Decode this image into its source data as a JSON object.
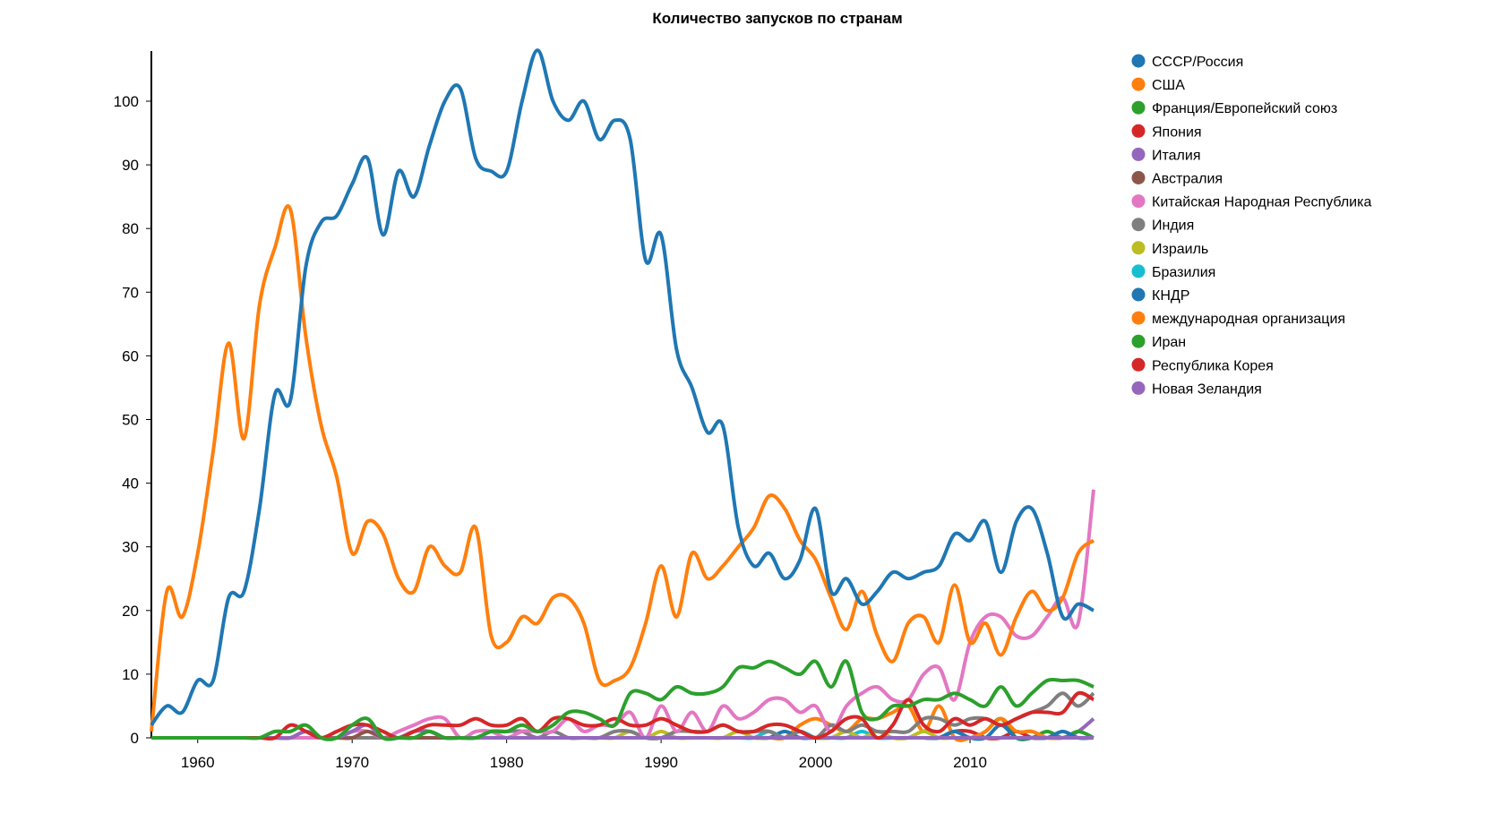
{
  "chart_data": {
    "type": "line",
    "title": "Количество запусков по странам",
    "xlabel": "",
    "ylabel": "",
    "x_range": [
      1957,
      2018
    ],
    "ylim": [
      0,
      108
    ],
    "x_ticks": [
      1960,
      1970,
      1980,
      1990,
      2000,
      2010
    ],
    "y_ticks": [
      0,
      10,
      20,
      30,
      40,
      50,
      60,
      70,
      80,
      90,
      100
    ],
    "legend_position": "right",
    "start_year": 1957,
    "series": [
      {
        "name": "СССР/Россия",
        "color": "#1f77b4",
        "values": [
          2,
          5,
          4,
          9,
          9,
          22,
          23,
          36,
          54,
          53,
          74,
          81,
          82,
          87,
          91,
          79,
          89,
          85,
          93,
          100,
          102,
          91,
          89,
          89,
          100,
          108,
          100,
          97,
          100,
          94,
          97,
          94,
          75,
          79,
          61,
          55,
          48,
          49,
          33,
          27,
          29,
          25,
          28,
          36,
          23,
          25,
          21,
          23,
          26,
          25,
          26,
          27,
          32,
          31,
          34,
          26,
          34,
          36,
          29,
          19,
          21,
          20
        ]
      },
      {
        "name": "США",
        "color": "#ff7f0e",
        "values": [
          1,
          23,
          19,
          29,
          45,
          62,
          47,
          68,
          77,
          83,
          63,
          49,
          41,
          29,
          34,
          32,
          25,
          23,
          30,
          27,
          26,
          33,
          16,
          15,
          19,
          18,
          22,
          22,
          18,
          9,
          9,
          11,
          18,
          27,
          19,
          29,
          25,
          27,
          30,
          33,
          38,
          36,
          31,
          28,
          22,
          17,
          23,
          16,
          12,
          18,
          19,
          15,
          24,
          15,
          18,
          13,
          19,
          23,
          20,
          22,
          29,
          31
        ]
      },
      {
        "name": "Франция/Европейский союз",
        "color": "#2ca02c",
        "sparse": {
          "1965": 1,
          "1966": 1,
          "1967": 2,
          "1970": 2,
          "1971": 3,
          "1975": 1,
          "1979": 1,
          "1980": 1,
          "1981": 2,
          "1982": 1,
          "1983": 2,
          "1984": 4,
          "1985": 4,
          "1986": 3,
          "1987": 2,
          "1988": 7,
          "1989": 7,
          "1990": 6,
          "1991": 8,
          "1992": 7,
          "1993": 7,
          "1994": 8,
          "1995": 11,
          "1996": 11,
          "1997": 12,
          "1998": 11,
          "1999": 10,
          "2000": 12,
          "2001": 8,
          "2002": 12,
          "2003": 4,
          "2004": 3,
          "2005": 5,
          "2006": 5,
          "2007": 6,
          "2008": 6,
          "2009": 7,
          "2010": 6,
          "2011": 5,
          "2012": 8,
          "2013": 5,
          "2014": 7,
          "2015": 9,
          "2016": 9,
          "2017": 9,
          "2018": 8
        }
      },
      {
        "name": "Япония",
        "color": "#d62728",
        "sparse": {
          "1966": 2,
          "1967": 1,
          "1969": 1,
          "1970": 2,
          "1971": 2,
          "1972": 1,
          "1974": 1,
          "1975": 2,
          "1976": 2,
          "1977": 2,
          "1978": 3,
          "1979": 2,
          "1980": 2,
          "1981": 3,
          "1982": 1,
          "1983": 3,
          "1984": 3,
          "1985": 2,
          "1986": 2,
          "1987": 3,
          "1988": 2,
          "1989": 2,
          "1990": 3,
          "1991": 2,
          "1992": 1,
          "1993": 1,
          "1994": 2,
          "1995": 1,
          "1996": 1,
          "1997": 2,
          "1998": 2,
          "1999": 1,
          "2001": 1,
          "2002": 3,
          "2003": 3,
          "2005": 2,
          "2006": 6,
          "2007": 2,
          "2008": 1,
          "2009": 3,
          "2010": 2,
          "2011": 3,
          "2012": 2,
          "2013": 3,
          "2014": 4,
          "2015": 4,
          "2016": 4,
          "2017": 7,
          "2018": 6
        }
      },
      {
        "name": "Италия",
        "color": "#9467bd",
        "sparse": {
          "1967": 1,
          "1970": 1,
          "1971": 2,
          "1974": 1,
          "1975": 1
        }
      },
      {
        "name": "Австралия",
        "color": "#8c564b",
        "sparse": {
          "1967": 1,
          "1971": 1
        }
      },
      {
        "name": "Китайская Народная Республика",
        "color": "#e377c2",
        "sparse": {
          "1970": 1,
          "1971": 1,
          "1973": 1,
          "1974": 2,
          "1975": 3,
          "1976": 3,
          "1978": 1,
          "1979": 1,
          "1981": 1,
          "1982": 1,
          "1983": 1,
          "1984": 3,
          "1985": 1,
          "1986": 2,
          "1987": 2,
          "1988": 4,
          "1990": 5,
          "1991": 1,
          "1992": 4,
          "1993": 1,
          "1994": 5,
          "1995": 3,
          "1996": 4,
          "1997": 6,
          "1998": 6,
          "1999": 4,
          "2000": 5,
          "2001": 1,
          "2002": 5,
          "2003": 7,
          "2004": 8,
          "2005": 6,
          "2006": 6,
          "2007": 10,
          "2008": 11,
          "2009": 6,
          "2010": 15,
          "2011": 19,
          "2012": 19,
          "2013": 16,
          "2014": 16,
          "2015": 19,
          "2016": 22,
          "2017": 18,
          "2018": 39
        }
      },
      {
        "name": "Индия",
        "color": "#7f7f7f",
        "sparse": {
          "1979": 1,
          "1980": 1,
          "1981": 1,
          "1983": 1,
          "1987": 1,
          "1988": 1,
          "1991": 1,
          "1992": 1,
          "1993": 1,
          "1994": 2,
          "1995": 1,
          "1996": 1,
          "1997": 1,
          "1999": 1,
          "2001": 2,
          "2002": 1,
          "2003": 2,
          "2004": 1,
          "2005": 1,
          "2006": 1,
          "2007": 3,
          "2008": 3,
          "2009": 2,
          "2010": 3,
          "2011": 3,
          "2012": 2,
          "2013": 3,
          "2014": 4,
          "2015": 5,
          "2016": 7,
          "2017": 5,
          "2018": 7
        }
      },
      {
        "name": "Израиль",
        "color": "#bcbd22",
        "sparse": {
          "1988": 1,
          "1990": 1,
          "1995": 1,
          "2002": 1,
          "2004": 1,
          "2007": 1
        }
      },
      {
        "name": "Бразилия",
        "color": "#17becf",
        "sparse": {
          "1997": 1,
          "1999": 1,
          "2003": 1
        }
      },
      {
        "name": "КНДР",
        "color": "#1f77b4",
        "sparse": {
          "1998": 1,
          "2009": 1,
          "2012": 2,
          "2016": 1
        }
      },
      {
        "name": "международная организация",
        "color": "#ff7f0e",
        "sparse": {
          "1999": 2,
          "2000": 3,
          "2001": 2,
          "2002": 1,
          "2003": 3,
          "2004": 3,
          "2005": 4,
          "2006": 5,
          "2007": 1,
          "2008": 5,
          "2011": 1,
          "2012": 3,
          "2013": 1,
          "2014": 1
        }
      },
      {
        "name": "Иран",
        "color": "#2ca02c",
        "sparse": {
          "2009": 1,
          "2011": 1,
          "2012": 3,
          "2015": 1,
          "2017": 1
        }
      },
      {
        "name": "Республика Корея",
        "color": "#d62728",
        "sparse": {
          "2009": 1,
          "2010": 1,
          "2013": 1
        }
      },
      {
        "name": "Новая Зеландия",
        "color": "#9467bd",
        "sparse": {
          "2017": 1,
          "2018": 3
        }
      }
    ]
  }
}
